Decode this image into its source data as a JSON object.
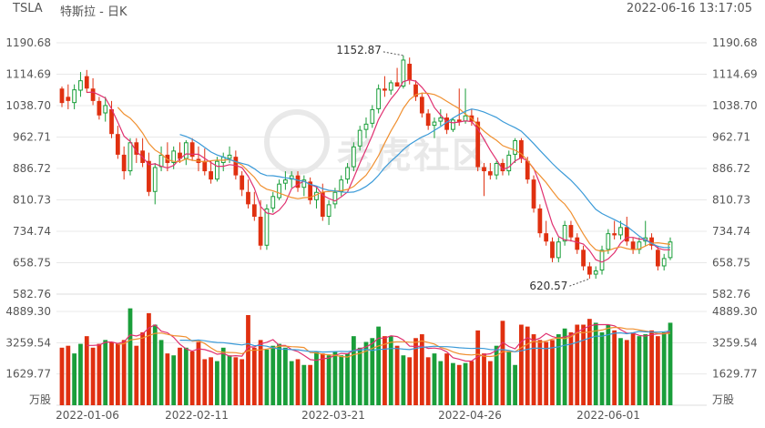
{
  "header": {
    "symbol": "TSLA",
    "title": "特斯拉 - 日K",
    "datetime": "2022-06-16 13:17:05"
  },
  "watermark": "老虎社区",
  "colors": {
    "up": "#1a9e3a",
    "down": "#e03010",
    "ma5": "#e03070",
    "ma10": "#f09030",
    "ma20": "#3a9ad8",
    "grid": "#e8e8e8"
  },
  "price_axis": {
    "labels": [
      "1190.68",
      "1114.69",
      "1038.70",
      "962.71",
      "886.72",
      "810.73",
      "734.74",
      "658.75",
      "582.76"
    ],
    "min": 582.76,
    "max": 1190.68
  },
  "volume_axis": {
    "labels": [
      "4889.30",
      "3259.54",
      "1629.77"
    ],
    "unit": "万股",
    "max": 4889.3
  },
  "x_axis": {
    "labels": [
      "2022-01-06",
      "2022-02-11",
      "2022-03-21",
      "2022-04-26",
      "2022-06-01"
    ]
  },
  "annotations": {
    "high_label": "1152.87",
    "low_label": "620.57"
  },
  "chart_data": {
    "type": "candlestick",
    "series": [
      {
        "name": "TSLA",
        "values": [
          [
            1080,
            1085,
            1035,
            1045
          ],
          [
            1060,
            1090,
            1030,
            1050
          ],
          [
            1045,
            1090,
            1030,
            1078
          ],
          [
            1075,
            1120,
            1060,
            1100
          ],
          [
            1110,
            1125,
            1070,
            1080
          ],
          [
            1080,
            1105,
            1040,
            1050
          ],
          [
            1050,
            1060,
            1005,
            1015
          ],
          [
            1020,
            1060,
            1000,
            1040
          ],
          [
            1030,
            1050,
            960,
            970
          ],
          [
            970,
            990,
            910,
            920
          ],
          [
            920,
            940,
            860,
            880
          ],
          [
            880,
            960,
            870,
            950
          ],
          [
            950,
            960,
            900,
            920
          ],
          [
            930,
            960,
            890,
            900
          ],
          [
            905,
            925,
            820,
            830
          ],
          [
            830,
            900,
            800,
            890
          ],
          [
            890,
            940,
            880,
            920
          ],
          [
            920,
            950,
            880,
            900
          ],
          [
            900,
            940,
            885,
            930
          ],
          [
            925,
            950,
            900,
            910
          ],
          [
            910,
            955,
            895,
            950
          ],
          [
            950,
            960,
            905,
            915
          ],
          [
            910,
            940,
            880,
            900
          ],
          [
            905,
            935,
            870,
            880
          ],
          [
            880,
            905,
            850,
            860
          ],
          [
            860,
            915,
            855,
            905
          ],
          [
            900,
            925,
            880,
            915
          ],
          [
            910,
            940,
            900,
            920
          ],
          [
            915,
            930,
            860,
            870
          ],
          [
            870,
            880,
            820,
            835
          ],
          [
            830,
            860,
            790,
            800
          ],
          [
            800,
            830,
            760,
            770
          ],
          [
            770,
            810,
            690,
            700
          ],
          [
            700,
            800,
            690,
            790
          ],
          [
            790,
            830,
            780,
            820
          ],
          [
            815,
            860,
            810,
            850
          ],
          [
            850,
            880,
            835,
            860
          ],
          [
            860,
            880,
            840,
            870
          ],
          [
            870,
            880,
            830,
            840
          ],
          [
            840,
            870,
            820,
            860
          ],
          [
            855,
            865,
            800,
            810
          ],
          [
            810,
            840,
            790,
            830
          ],
          [
            830,
            850,
            760,
            770
          ],
          [
            770,
            810,
            750,
            800
          ],
          [
            800,
            840,
            790,
            830
          ],
          [
            830,
            870,
            820,
            860
          ],
          [
            860,
            900,
            850,
            890
          ],
          [
            890,
            950,
            880,
            940
          ],
          [
            940,
            990,
            930,
            980
          ],
          [
            980,
            1010,
            960,
            995
          ],
          [
            995,
            1040,
            985,
            1030
          ],
          [
            1030,
            1090,
            1020,
            1080
          ],
          [
            1080,
            1110,
            1060,
            1075
          ],
          [
            1075,
            1100,
            1065,
            1095
          ],
          [
            1095,
            1130,
            1085,
            1085
          ],
          [
            1085,
            1160,
            1080,
            1150
          ],
          [
            1140,
            1155,
            1090,
            1100
          ],
          [
            1090,
            1100,
            1050,
            1060
          ],
          [
            1060,
            1070,
            1010,
            1020
          ],
          [
            1020,
            1030,
            980,
            990
          ],
          [
            990,
            1010,
            960,
            1000
          ],
          [
            1000,
            1030,
            990,
            1010
          ],
          [
            1010,
            1020,
            970,
            980
          ],
          [
            980,
            1010,
            975,
            1005
          ],
          [
            1005,
            1080,
            990,
            1000
          ],
          [
            1000,
            1080,
            995,
            1015
          ],
          [
            1015,
            1030,
            990,
            1000
          ],
          [
            1000,
            1010,
            880,
            890
          ],
          [
            890,
            900,
            820,
            880
          ],
          [
            880,
            900,
            860,
            870
          ],
          [
            870,
            905,
            860,
            900
          ],
          [
            900,
            910,
            870,
            880
          ],
          [
            880,
            930,
            870,
            920
          ],
          [
            920,
            960,
            900,
            955
          ],
          [
            955,
            960,
            900,
            910
          ],
          [
            905,
            915,
            850,
            860
          ],
          [
            860,
            870,
            780,
            790
          ],
          [
            790,
            800,
            720,
            730
          ],
          [
            730,
            760,
            700,
            710
          ],
          [
            710,
            720,
            660,
            670
          ],
          [
            670,
            720,
            660,
            710
          ],
          [
            710,
            760,
            700,
            750
          ],
          [
            750,
            760,
            710,
            720
          ],
          [
            720,
            730,
            680,
            690
          ],
          [
            690,
            700,
            640,
            650
          ],
          [
            650,
            660,
            620,
            630
          ],
          [
            630,
            650,
            620,
            640
          ],
          [
            640,
            700,
            630,
            690
          ],
          [
            690,
            740,
            680,
            730
          ],
          [
            730,
            760,
            715,
            725
          ],
          [
            725,
            760,
            715,
            745
          ],
          [
            745,
            770,
            700,
            710
          ],
          [
            710,
            720,
            680,
            690
          ],
          [
            690,
            720,
            680,
            710
          ],
          [
            710,
            760,
            700,
            720
          ],
          [
            720,
            730,
            690,
            700
          ],
          [
            690,
            700,
            640,
            650
          ],
          [
            650,
            680,
            640,
            670
          ],
          [
            670,
            720,
            665,
            710
          ]
        ]
      },
      {
        "name": "VOL",
        "values": [
          3000,
          3100,
          2700,
          3200,
          3600,
          3000,
          3200,
          3400,
          3300,
          3200,
          3400,
          5050,
          3100,
          3800,
          4800,
          4200,
          3400,
          2700,
          2600,
          3000,
          3000,
          2800,
          3300,
          2400,
          2500,
          2300,
          3000,
          2600,
          2500,
          2400,
          4700,
          3000,
          3400,
          2900,
          3100,
          3200,
          3000,
          2300,
          2400,
          2100,
          2100,
          2800,
          2700,
          2600,
          2800,
          2600,
          2700,
          3600,
          3000,
          3300,
          3500,
          4100,
          3600,
          3600,
          3100,
          2600,
          2500,
          3500,
          3700,
          2500,
          2700,
          2300,
          2700,
          2200,
          2100,
          2200,
          2300,
          3900,
          2700,
          2300,
          3100,
          4400,
          2800,
          2100,
          4200,
          4100,
          3700,
          3400,
          3300,
          3400,
          3700,
          4000,
          3800,
          4200,
          4200,
          4500,
          4300,
          3800,
          4200,
          3900,
          3500,
          3400,
          3800,
          3600,
          3700,
          3900,
          3600,
          3800,
          4300
        ]
      }
    ]
  }
}
